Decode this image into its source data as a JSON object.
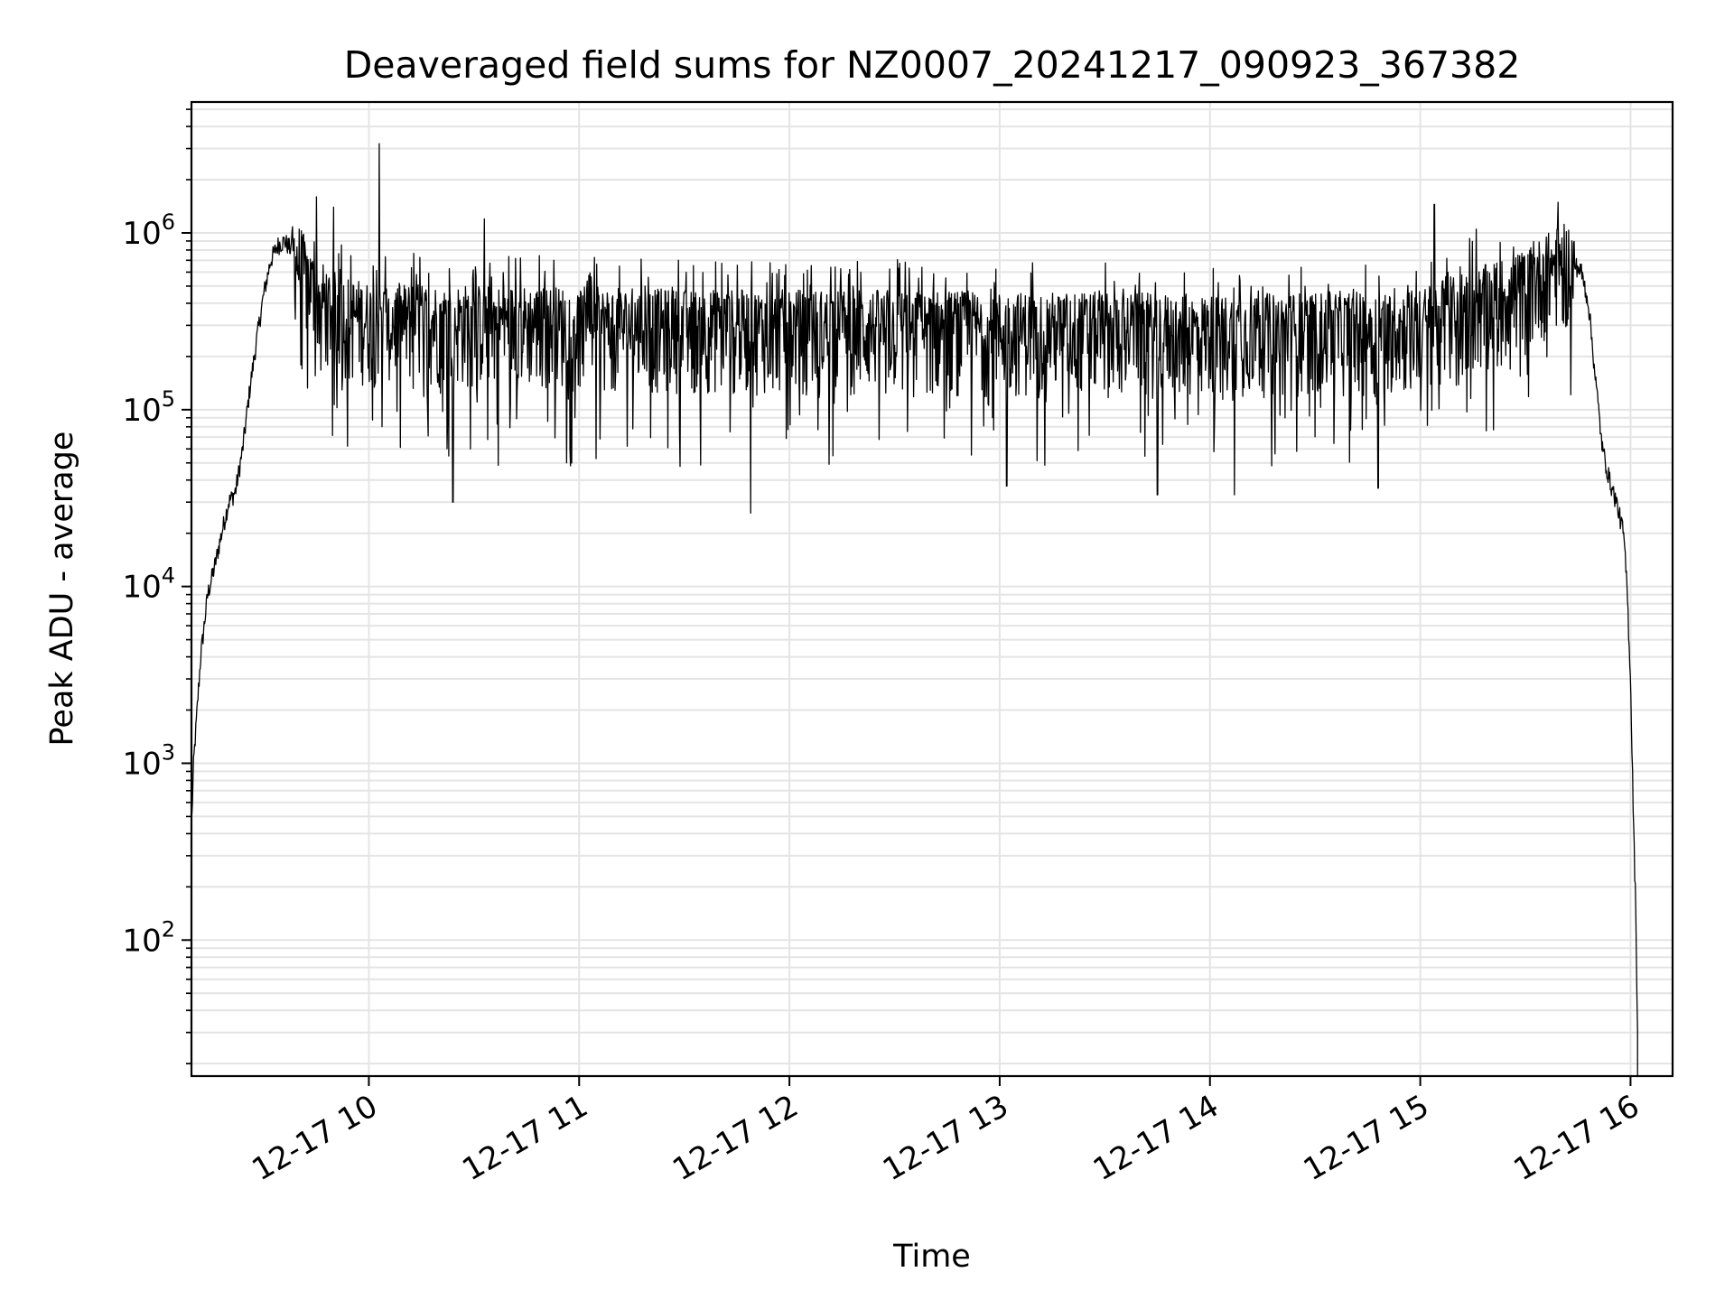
{
  "chart_data": {
    "type": "line",
    "title": "Deaveraged field sums for NZ0007_20241217_090923_367382",
    "xlabel": "Time",
    "ylabel": "Peak ADU - average",
    "yscale": "log",
    "ylim": [
      17,
      5500000
    ],
    "xlim": [
      "2024-12-17 09:09:23",
      "2024-12-17 16:12:00"
    ],
    "grid": true,
    "line_color": "#000000",
    "grid_color": "#e4e4e4",
    "x_ticks": [
      {
        "value": "2024-12-17 10:00",
        "label": "12-17 10"
      },
      {
        "value": "2024-12-17 11:00",
        "label": "12-17 11"
      },
      {
        "value": "2024-12-17 12:00",
        "label": "12-17 12"
      },
      {
        "value": "2024-12-17 13:00",
        "label": "12-17 13"
      },
      {
        "value": "2024-12-17 14:00",
        "label": "12-17 14"
      },
      {
        "value": "2024-12-17 15:00",
        "label": "12-17 15"
      },
      {
        "value": "2024-12-17 16:00",
        "label": "12-17 16"
      }
    ],
    "y_ticks": [
      {
        "value": 100,
        "base": "10",
        "exp": "2"
      },
      {
        "value": 1000,
        "base": "10",
        "exp": "3"
      },
      {
        "value": 10000,
        "base": "10",
        "exp": "4"
      },
      {
        "value": 100000,
        "base": "10",
        "exp": "5"
      },
      {
        "value": 1000000,
        "base": "10",
        "exp": "6"
      }
    ],
    "series": [
      {
        "x": [
          "2024-12-17 09:09:30",
          "2024-12-17 09:10:00",
          "2024-12-17 09:11:00",
          "2024-12-17 09:12:00",
          "2024-12-17 09:13:00",
          "2024-12-17 09:14:00",
          "2024-12-17 09:16:00",
          "2024-12-17 09:18:00",
          "2024-12-17 09:20:00",
          "2024-12-17 09:21:00",
          "2024-12-17 09:22:00",
          "2024-12-17 09:24:00",
          "2024-12-17 09:26:00",
          "2024-12-17 09:28:00",
          "2024-12-17 09:30:00",
          "2024-12-17 09:32:00",
          "2024-12-17 09:34:00",
          "2024-12-17 09:36:00",
          "2024-12-17 09:40:00",
          "2024-12-17 09:45:00",
          "2024-12-17 09:50:00",
          "2024-12-17 09:55:00",
          "2024-12-17 10:00:00",
          "2024-12-17 10:30:00",
          "2024-12-17 11:00:00",
          "2024-12-17 11:30:00",
          "2024-12-17 12:00:00",
          "2024-12-17 12:30:00",
          "2024-12-17 13:00:00",
          "2024-12-17 13:30:00",
          "2024-12-17 14:00:00",
          "2024-12-17 14:30:00",
          "2024-12-17 15:00:00",
          "2024-12-17 15:10:00",
          "2024-12-17 15:20:00",
          "2024-12-17 15:30:00",
          "2024-12-17 15:35:00",
          "2024-12-17 15:40:00",
          "2024-12-17 15:43:00",
          "2024-12-17 15:46:00",
          "2024-12-17 15:48:00",
          "2024-12-17 15:50:00",
          "2024-12-17 15:52:00",
          "2024-12-17 15:54:00",
          "2024-12-17 15:56:00",
          "2024-12-17 15:58:00",
          "2024-12-17 15:59:00",
          "2024-12-17 16:00:00",
          "2024-12-17 16:00:30",
          "2024-12-17 16:01:00",
          "2024-12-17 16:01:30",
          "2024-12-17 16:02:00"
        ],
        "y": [
          500,
          1000,
          2000,
          4000,
          6000,
          9000,
          13000,
          20000,
          30000,
          32000,
          35000,
          60000,
          130000,
          250000,
          450000,
          700000,
          850000,
          900000,
          700000,
          450000,
          380000,
          350000,
          330000,
          320000,
          310000,
          300000,
          300000,
          300000,
          290000,
          290000,
          280000,
          290000,
          300000,
          380000,
          420000,
          500000,
          600000,
          700000,
          700000,
          600000,
          400000,
          150000,
          60000,
          40000,
          30000,
          20000,
          10000,
          3000,
          1000,
          350,
          150,
          30
        ],
        "spikes": [
          {
            "x": "2024-12-17 09:45:00",
            "y": 1600000
          },
          {
            "x": "2024-12-17 09:50:00",
            "y": 1400000
          },
          {
            "x": "2024-12-17 10:03:00",
            "y": 3200000
          },
          {
            "x": "2024-12-17 10:33:00",
            "y": 1200000
          },
          {
            "x": "2024-12-17 10:24:00",
            "y": 30000
          },
          {
            "x": "2024-12-17 11:49:00",
            "y": 26000
          },
          {
            "x": "2024-12-17 13:02:00",
            "y": 37000
          },
          {
            "x": "2024-12-17 13:45:00",
            "y": 33000
          },
          {
            "x": "2024-12-17 14:07:00",
            "y": 33000
          },
          {
            "x": "2024-12-17 14:48:00",
            "y": 36000
          },
          {
            "x": "2024-12-17 15:04:00",
            "y": 1450000
          },
          {
            "x": "2024-12-17 15:16:00",
            "y": 1050000
          }
        ]
      }
    ]
  }
}
